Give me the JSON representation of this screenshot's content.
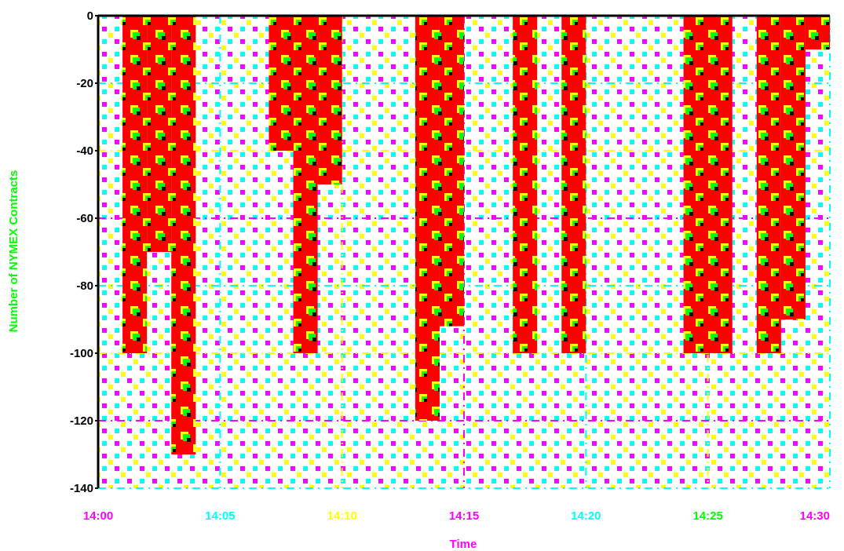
{
  "colors": {
    "bar_fill": "#ff0000",
    "bar_dot_primary": "#00ff00",
    "bar_dot_secondary": "#ffff00",
    "bar_dot_shadow": "#000000",
    "background_dot_a": "#ff00ff",
    "background_dot_b": "#00ffff",
    "background_dot_c": "#ffff00",
    "axis": "#000000",
    "gridline_a": "#ff00ff",
    "gridline_b": "#00ffff",
    "gridline_c": "#ffff00",
    "xtick_label_colors": [
      "#ff00ff",
      "#00ffff",
      "#ffff00",
      "#ff00ff",
      "#00ffff",
      "#00ff00",
      "#ff00ff"
    ],
    "xlabel_color": "#ff00ff",
    "ylabel_color": "#00ff00"
  },
  "chart_data": {
    "type": "bar",
    "title": "",
    "xlabel": "Time",
    "ylabel": "Number of NYMEX Contracts",
    "xlim": [
      "14:00",
      "14:30"
    ],
    "ylim": [
      -140,
      0
    ],
    "xticks": [
      "14:00",
      "14:05",
      "14:10",
      "14:15",
      "14:20",
      "14:25",
      "14:30"
    ],
    "yticks": [
      "0",
      "-20",
      "-40",
      "-60",
      "-80",
      "-100",
      "-120",
      "-140"
    ],
    "yticks_values": [
      0,
      -20,
      -40,
      -60,
      -80,
      -100,
      -120,
      -140
    ],
    "grid": true,
    "series": [
      {
        "values": [
          {
            "start": "14:01",
            "end": "14:02",
            "value": -100
          },
          {
            "start": "14:02",
            "end": "14:03",
            "value": -70
          },
          {
            "start": "14:03",
            "end": "14:03",
            "value": -130
          },
          {
            "start": "14:07",
            "end": "14:08",
            "value": -40
          },
          {
            "start": "14:08",
            "end": "14:09",
            "value": -100
          },
          {
            "start": "14:09",
            "end": "14:10",
            "value": -50
          },
          {
            "start": "14:13",
            "end": "14:14",
            "value": -120
          },
          {
            "start": "14:14",
            "end": "14:15",
            "value": -92
          },
          {
            "start": "14:17",
            "end": "14:18",
            "value": -100
          },
          {
            "start": "14:19",
            "end": "14:20",
            "value": -100
          },
          {
            "start": "14:24",
            "end": "14:26",
            "value": -100
          },
          {
            "start": "14:27",
            "end": "14:28",
            "value": -100
          },
          {
            "start": "14:28",
            "end": "14:29",
            "value": -90
          },
          {
            "start": "14:29",
            "end": "14:30",
            "value": -10
          }
        ]
      }
    ]
  }
}
